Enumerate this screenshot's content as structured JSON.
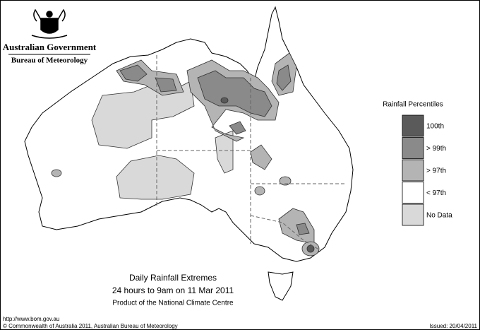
{
  "header": {
    "agency": "Australian Government",
    "bureau": "Bureau of Meteorology"
  },
  "title": "Daily Rainfall Extremes",
  "subtitle": "24 hours to 9am on 11 Mar 2011",
  "product": "Product of the National Climate Centre",
  "legend": {
    "title": "Rainfall Percentiles",
    "items": [
      {
        "label": "100th",
        "color": "#5a5a5a"
      },
      {
        "label": "> 99th",
        "color": "#8a8a8a"
      },
      {
        "label": "> 97th",
        "color": "#b4b4b4"
      },
      {
        "label": "< 97th",
        "color": "#ffffff"
      },
      {
        "label": "No Data",
        "color": "#d9d9d9"
      }
    ]
  },
  "footer": {
    "url": "http://www.bom.gov.au",
    "copyright": "© Commonwealth of Australia 2011, Australian Bureau of Meteorology",
    "issued": "Issued: 20/04/2011"
  }
}
